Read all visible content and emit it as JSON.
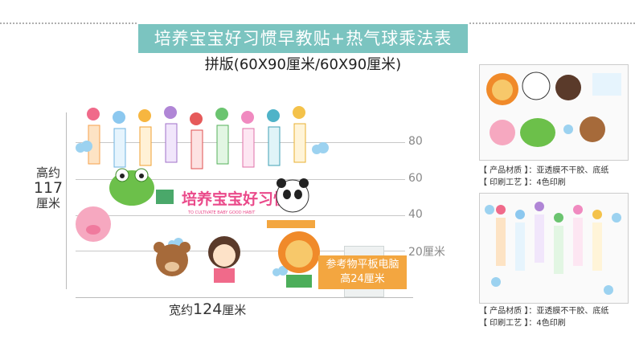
{
  "header": {
    "title": "培养宝宝好习惯早教贴+热气球乘法表",
    "subtitle": "拼版(60X90厘米/60X90厘米)"
  },
  "sticker": {
    "headline": "培养宝宝好习惯",
    "headline_en": "TO CULTIVATE BABY GOOD HABIT"
  },
  "scale": {
    "ticks": [
      "80",
      "60",
      "40",
      "20厘米"
    ]
  },
  "dimensions": {
    "height_prefix": "高约",
    "height_value": "117",
    "height_unit": "厘米",
    "width_prefix": "宽约",
    "width_value": "124",
    "width_unit": "厘米"
  },
  "reference": {
    "line1": "参考物平板电脑",
    "line2": "高24厘米"
  },
  "specs": [
    {
      "material_label": "【 产品材质 】：",
      "material_value": "亚透膜不干胶、底纸",
      "process_label": "【 印刷工艺 】：",
      "process_value": "4色印刷"
    },
    {
      "material_label": "【 产品材质 】：",
      "material_value": "亚透膜不干胶、底纸",
      "process_label": "【 印刷工艺 】：",
      "process_value": "4色印刷"
    }
  ],
  "colors": {
    "title_bg": "#7bc4c0",
    "ref_bg": "#f3a640"
  }
}
